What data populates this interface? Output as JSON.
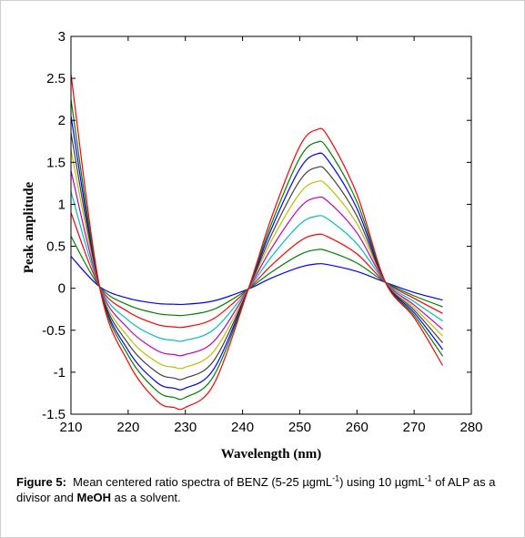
{
  "chart_data": {
    "type": "line",
    "title": "",
    "xlabel": "Wavelength (nm)",
    "ylabel": "Peak amplitude",
    "xlim": [
      210,
      280
    ],
    "ylim": [
      -1.5,
      3
    ],
    "xticks": [
      "210",
      "220",
      "230",
      "240",
      "250",
      "260",
      "270",
      "280"
    ],
    "yticks": [
      "3",
      "2.5",
      "2",
      "1.5",
      "1",
      "0.5",
      "0",
      "-0.5",
      "-1",
      "-1.5"
    ],
    "grid": false,
    "legend": "none",
    "x": [
      210,
      215,
      220,
      225,
      228,
      230,
      235,
      241,
      245,
      250,
      253,
      255,
      260,
      265,
      270,
      275
    ],
    "series": [
      {
        "color": "#0000ff",
        "values": [
          0.38,
          0.02,
          -0.12,
          -0.18,
          -0.19,
          -0.19,
          -0.15,
          -0.01,
          0.12,
          0.25,
          0.29,
          0.28,
          0.2,
          0.07,
          -0.05,
          -0.14
        ]
      },
      {
        "color": "#008000",
        "values": [
          0.62,
          0.02,
          -0.2,
          -0.3,
          -0.32,
          -0.32,
          -0.25,
          -0.01,
          0.19,
          0.4,
          0.46,
          0.44,
          0.3,
          0.07,
          -0.09,
          -0.22
        ]
      },
      {
        "color": "#ff0000",
        "values": [
          0.9,
          0.02,
          -0.28,
          -0.43,
          -0.46,
          -0.46,
          -0.36,
          -0.01,
          0.27,
          0.56,
          0.64,
          0.61,
          0.41,
          0.07,
          -0.12,
          -0.3
        ]
      },
      {
        "color": "#00bfbf",
        "values": [
          1.15,
          0.02,
          -0.38,
          -0.58,
          -0.62,
          -0.62,
          -0.49,
          -0.01,
          0.37,
          0.76,
          0.86,
          0.82,
          0.53,
          0.07,
          -0.16,
          -0.39
        ]
      },
      {
        "color": "#bf00bf",
        "values": [
          1.4,
          0.02,
          -0.48,
          -0.74,
          -0.79,
          -0.79,
          -0.63,
          -0.01,
          0.47,
          0.96,
          1.08,
          1.03,
          0.66,
          0.07,
          -0.2,
          -0.49
        ]
      },
      {
        "color": "#bfbf00",
        "values": [
          1.65,
          0.02,
          -0.58,
          -0.88,
          -0.94,
          -0.94,
          -0.75,
          -0.01,
          0.56,
          1.13,
          1.27,
          1.21,
          0.77,
          0.07,
          -0.23,
          -0.57
        ]
      },
      {
        "color": "#404040",
        "values": [
          1.85,
          0.02,
          -0.66,
          -1.0,
          -1.07,
          -1.07,
          -0.86,
          -0.01,
          0.63,
          1.28,
          1.44,
          1.37,
          0.86,
          0.07,
          -0.26,
          -0.65
        ]
      },
      {
        "color": "#0000ff",
        "values": [
          2.05,
          0.02,
          -0.74,
          -1.12,
          -1.19,
          -1.19,
          -0.96,
          -0.01,
          0.7,
          1.42,
          1.6,
          1.52,
          0.95,
          0.07,
          -0.29,
          -0.73
        ]
      },
      {
        "color": "#008000",
        "values": [
          2.25,
          0.02,
          -0.8,
          -1.22,
          -1.3,
          -1.3,
          -1.04,
          -0.01,
          0.76,
          1.55,
          1.74,
          1.65,
          1.03,
          0.07,
          -0.32,
          -0.81
        ]
      },
      {
        "color": "#ff0000",
        "values": [
          2.55,
          0.02,
          -0.88,
          -1.34,
          -1.42,
          -1.42,
          -1.14,
          -0.01,
          0.83,
          1.69,
          1.89,
          1.8,
          1.12,
          0.07,
          -0.35,
          -0.92
        ]
      }
    ]
  },
  "caption": {
    "figure_label": "Figure 5:",
    "text_1": "Mean centered ratio spectra of BENZ (5-25 µgmL",
    "sup_1": "-1",
    "text_2": ") using 10 µgmL",
    "sup_2": "-1",
    "text_3": " of ALP as a divisor and ",
    "bold_solvent": "MeOH",
    "text_4": " as a solvent."
  }
}
